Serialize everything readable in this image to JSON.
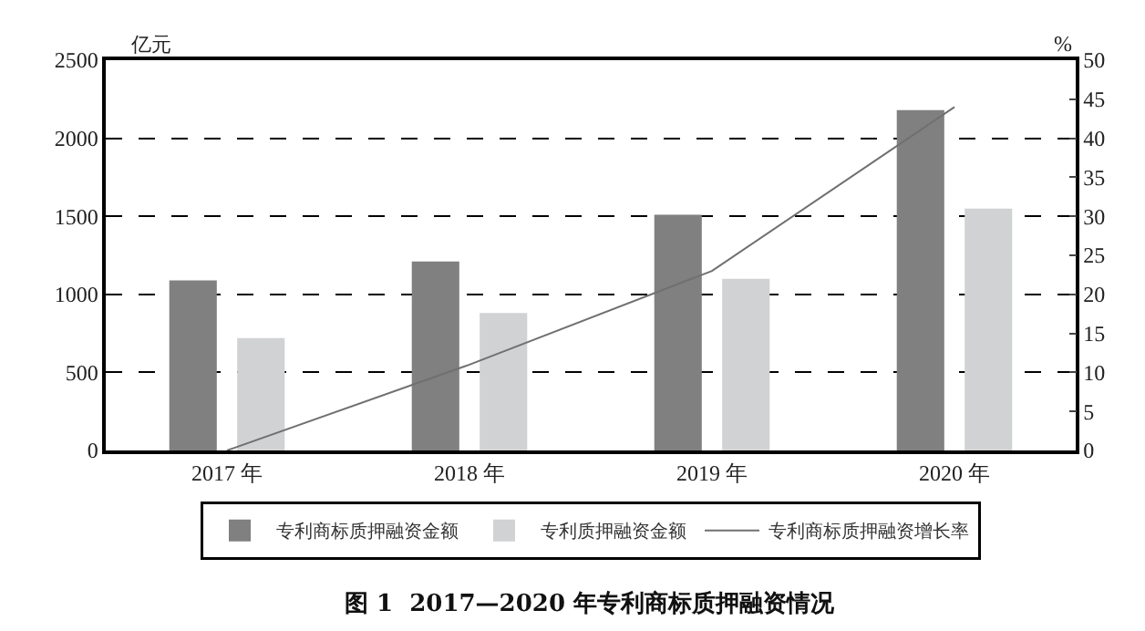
{
  "chart_data": {
    "type": "bar",
    "title": "图 1  2017—2020 年专利商标质押融资情况",
    "ylabel": "亿元",
    "y2label": "%",
    "categories": [
      "2017 年",
      "2018 年",
      "2019 年",
      "2020 年"
    ],
    "series": [
      {
        "name": "专利商标质押融资金额",
        "color": "#808080",
        "values": [
          1090,
          1210,
          1510,
          2180
        ]
      },
      {
        "name": "专利质押融资金额",
        "color": "#d1d2d4",
        "values": [
          720,
          880,
          1100,
          1550
        ]
      },
      {
        "name": "专利商标质押融资增长率",
        "type": "line",
        "axis": "y2",
        "color": "#707070",
        "values": [
          0,
          11,
          23,
          44
        ]
      }
    ],
    "ylim": [
      0,
      2500
    ],
    "yticks": [
      0,
      500,
      1000,
      1500,
      2000,
      2500
    ],
    "y2lim": [
      0,
      50
    ],
    "y2ticks": [
      0,
      5,
      10,
      15,
      20,
      25,
      30,
      35,
      40,
      45,
      50
    ],
    "grid": "y",
    "legend": "bottom",
    "marker": "none",
    "line_style": "solid"
  }
}
